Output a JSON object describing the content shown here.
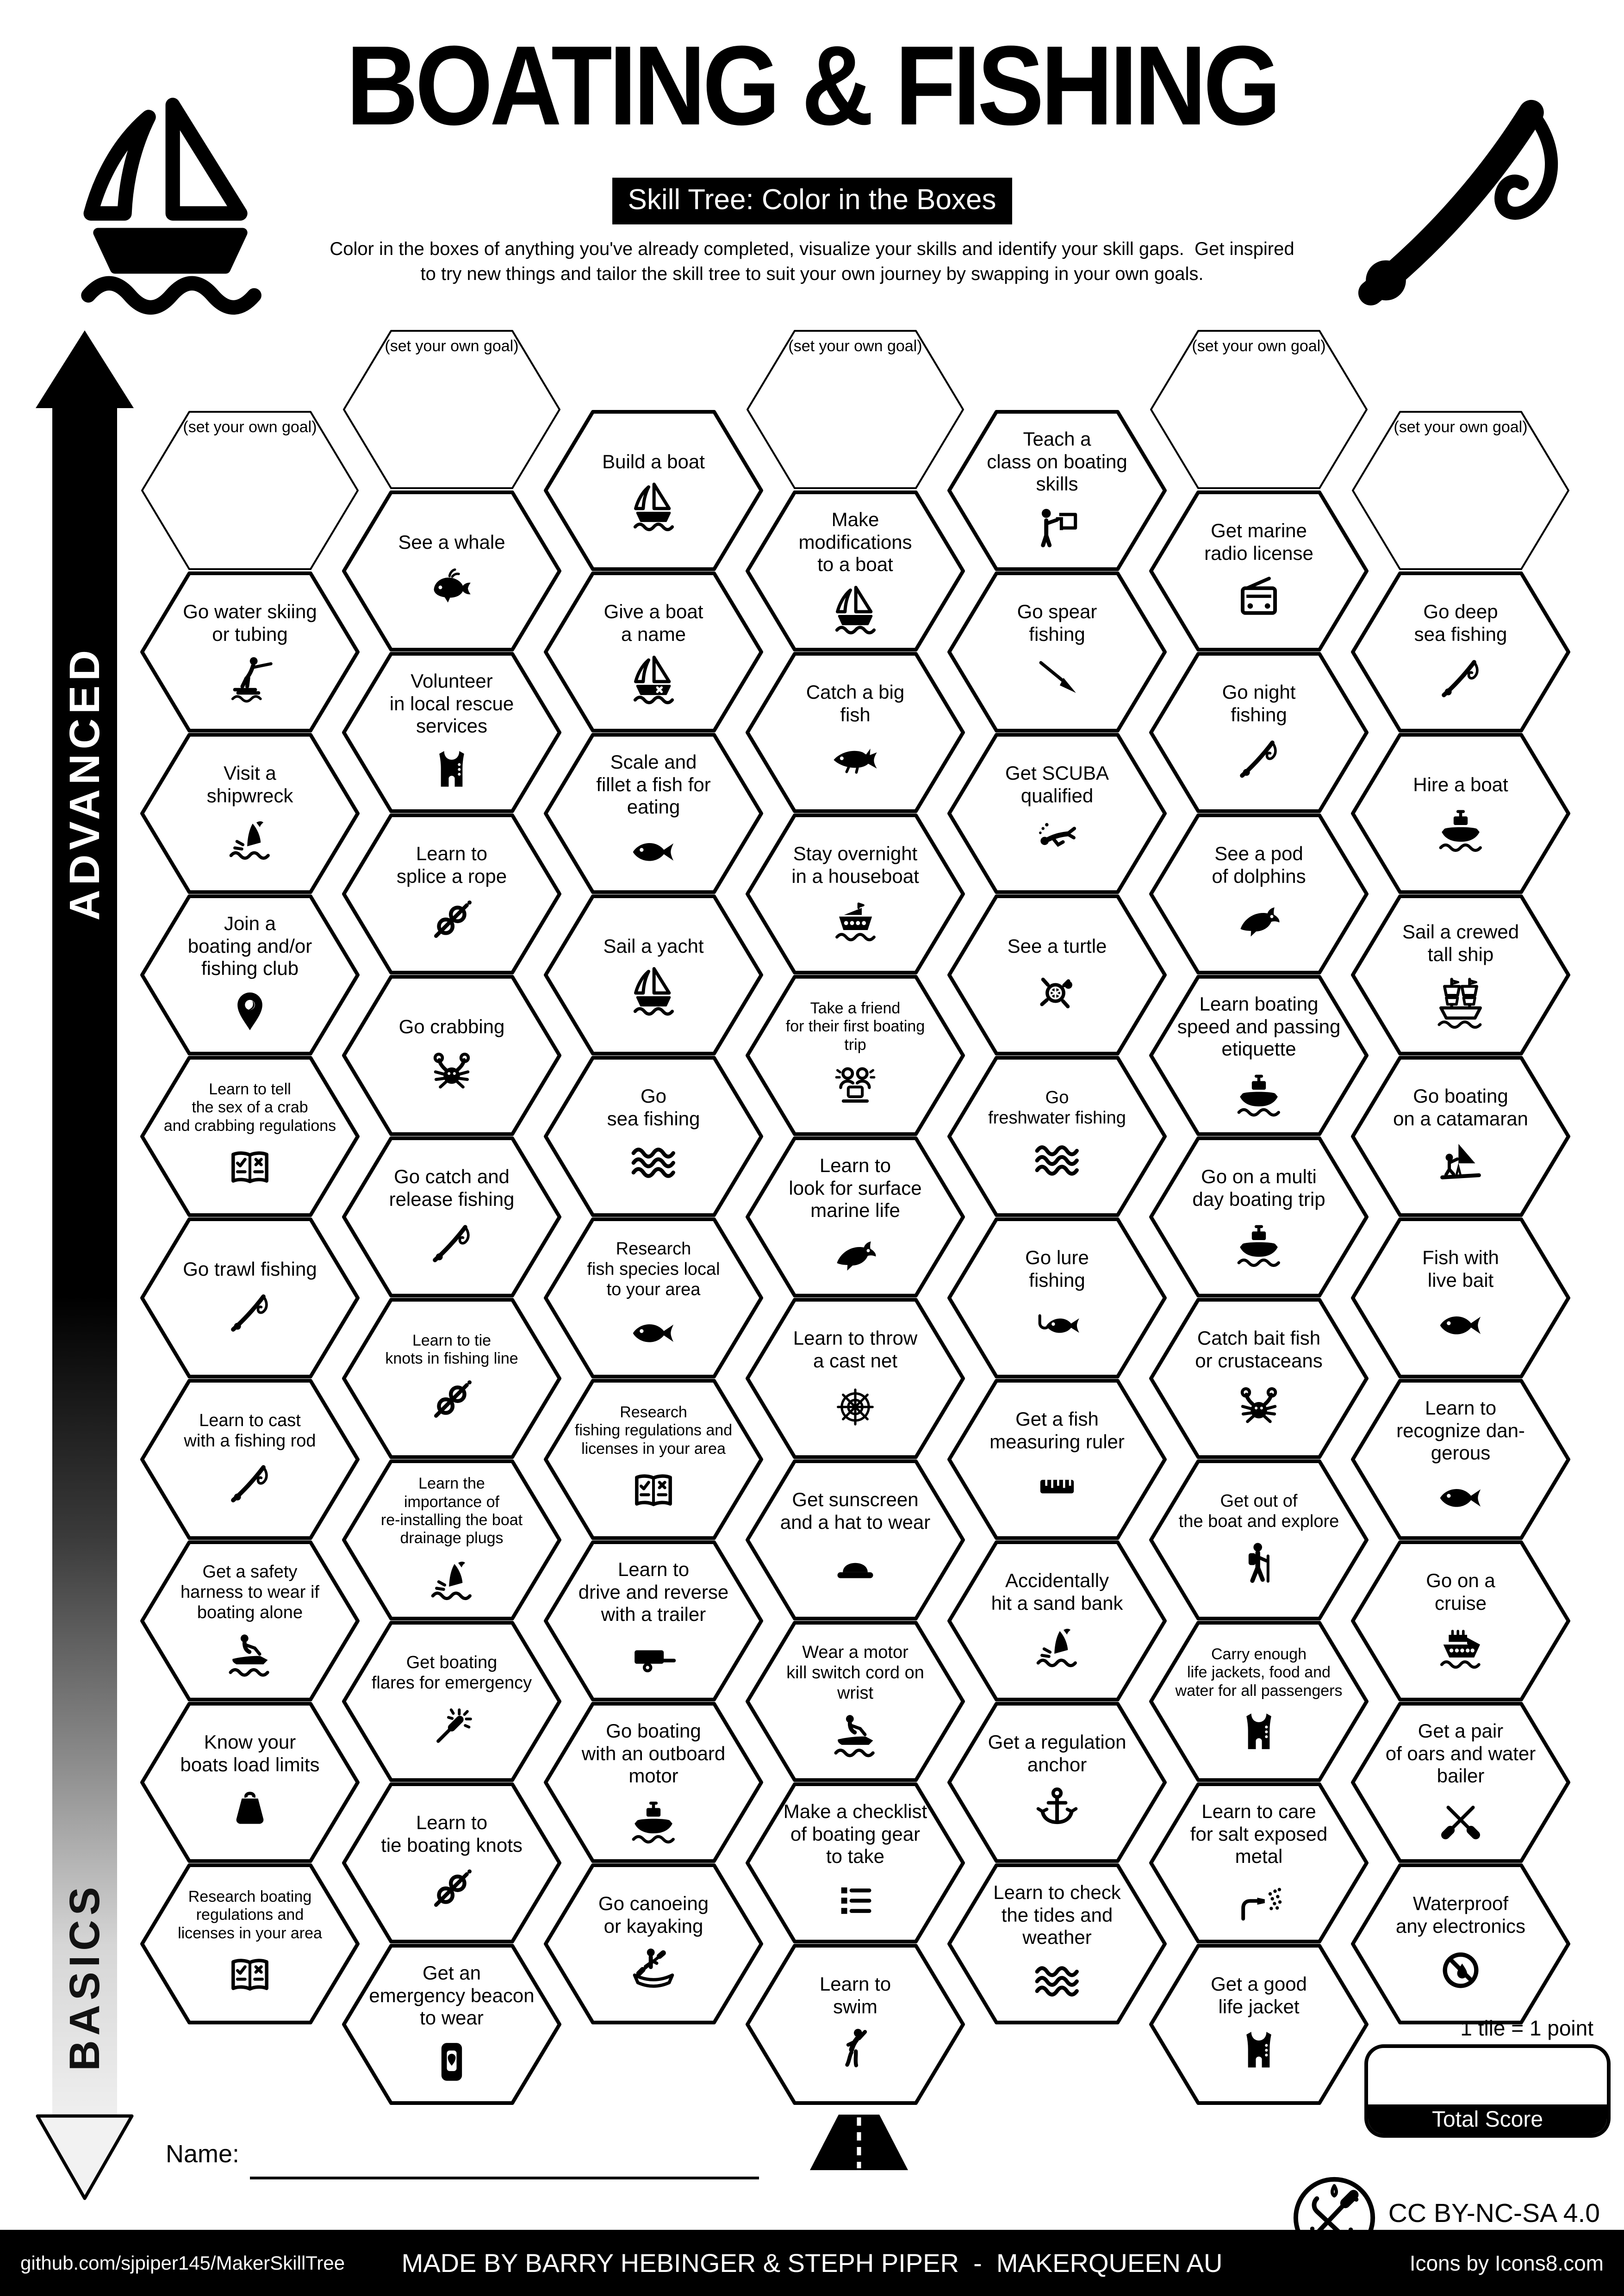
{
  "header": {
    "title": "BOATING & FISHING",
    "subtitle": "Skill Tree: Color in the Boxes",
    "description_line1": "Color in the boxes of anything you've already completed, visualize your skills and identify your skill gaps.  Get inspired",
    "description_line2": "to try new things and tailor the skill tree to suit your own journey by swapping in your own goals.",
    "left_icon": "sailboat-logo",
    "right_icon": "fishing-rod-logo"
  },
  "axis": {
    "top": "ADVANCED",
    "bottom": "BASICS"
  },
  "grid": {
    "tiles": [
      {
        "col": 0,
        "row": 0,
        "goal": true,
        "label": "(set your own goal)"
      },
      {
        "col": 0,
        "row": 1,
        "lines": [
          "Go water skiing",
          "or tubing"
        ],
        "icon": "water-skier"
      },
      {
        "col": 0,
        "row": 2,
        "lines": [
          "Visit a",
          "shipwreck"
        ],
        "icon": "shipwreck"
      },
      {
        "col": 0,
        "row": 3,
        "lines": [
          "Join a",
          "boating and/or",
          "fishing club"
        ],
        "icon": "location-pin"
      },
      {
        "col": 0,
        "row": 4,
        "lines": [
          "Learn to tell",
          "the sex of a crab",
          "and crabbing regulations"
        ],
        "icon": "guide-book"
      },
      {
        "col": 0,
        "row": 5,
        "lines": [
          "Go trawl fishing"
        ],
        "icon": "fishing-rod"
      },
      {
        "col": 0,
        "row": 6,
        "lines": [
          "Learn to cast",
          "with a fishing rod"
        ],
        "icon": "fishing-rod"
      },
      {
        "col": 0,
        "row": 7,
        "lines": [
          "Get a safety",
          "harness to wear if",
          "boating alone"
        ],
        "icon": "jet-ski"
      },
      {
        "col": 0,
        "row": 8,
        "lines": [
          "Know your",
          "boats load limits"
        ],
        "icon": "load-weight"
      },
      {
        "col": 0,
        "row": 9,
        "lines": [
          "Research boating",
          "regulations and",
          "licenses in your area"
        ],
        "icon": "guide-book"
      },
      {
        "col": 1,
        "row": 0,
        "goal": true,
        "label": "(set your own goal)"
      },
      {
        "col": 1,
        "row": 1,
        "lines": [
          "See a whale"
        ],
        "icon": "whale"
      },
      {
        "col": 1,
        "row": 2,
        "lines": [
          "Volunteer",
          "in local rescue",
          "services"
        ],
        "icon": "life-vest"
      },
      {
        "col": 1,
        "row": 3,
        "lines": [
          "Learn to",
          "splice a rope"
        ],
        "icon": "rope-knot"
      },
      {
        "col": 1,
        "row": 4,
        "lines": [
          "Go crabbing"
        ],
        "icon": "crab"
      },
      {
        "col": 1,
        "row": 5,
        "lines": [
          "Go catch and",
          "release fishing"
        ],
        "icon": "fishing-rod"
      },
      {
        "col": 1,
        "row": 6,
        "lines": [
          "Learn to tie",
          "knots in fishing line"
        ],
        "icon": "rope-knot"
      },
      {
        "col": 1,
        "row": 7,
        "lines": [
          "Learn the",
          "importance of",
          "re-installing the boat",
          "drainage plugs"
        ],
        "icon": "sinking-boat"
      },
      {
        "col": 1,
        "row": 8,
        "lines": [
          "Get boating",
          "flares for emergency"
        ],
        "icon": "flare"
      },
      {
        "col": 1,
        "row": 9,
        "lines": [
          "Learn to",
          "tie boating knots"
        ],
        "icon": "rope-knot"
      },
      {
        "col": 1,
        "row": 10,
        "lines": [
          "Get an",
          "emergency beacon",
          "to wear"
        ],
        "icon": "emergency-beacon"
      },
      {
        "col": 2,
        "row": 0,
        "lines": [
          "Build a boat"
        ],
        "icon": "sailboat"
      },
      {
        "col": 2,
        "row": 1,
        "lines": [
          "Give a boat",
          "a name"
        ],
        "icon": "boat-name"
      },
      {
        "col": 2,
        "row": 2,
        "lines": [
          "Scale and",
          "fillet a fish for",
          "eating"
        ],
        "icon": "fish"
      },
      {
        "col": 2,
        "row": 3,
        "lines": [
          "Sail a yacht"
        ],
        "icon": "sailboat"
      },
      {
        "col": 2,
        "row": 4,
        "lines": [
          "Go",
          "sea fishing"
        ],
        "icon": "waves"
      },
      {
        "col": 2,
        "row": 5,
        "lines": [
          "Research",
          "fish species local",
          "to your area"
        ],
        "icon": "fish"
      },
      {
        "col": 2,
        "row": 6,
        "lines": [
          "Research",
          "fishing regulations and",
          "licenses in your area"
        ],
        "icon": "guide-book"
      },
      {
        "col": 2,
        "row": 7,
        "lines": [
          "Learn to",
          "drive and reverse",
          "with a trailer"
        ],
        "icon": "boat-trailer"
      },
      {
        "col": 2,
        "row": 8,
        "lines": [
          "Go boating",
          "with an outboard",
          "motor"
        ],
        "icon": "motorboat"
      },
      {
        "col": 2,
        "row": 9,
        "lines": [
          "Go canoeing",
          "or kayaking"
        ],
        "icon": "canoe"
      },
      {
        "col": 3,
        "row": 0,
        "goal": true,
        "label": "(set your own goal)"
      },
      {
        "col": 3,
        "row": 1,
        "lines": [
          "Make",
          "modifications",
          "to a boat"
        ],
        "icon": "sailboat"
      },
      {
        "col": 3,
        "row": 2,
        "lines": [
          "Catch a big",
          "fish"
        ],
        "icon": "big-fish"
      },
      {
        "col": 3,
        "row": 3,
        "lines": [
          "Stay overnight",
          "in a houseboat"
        ],
        "icon": "houseboat"
      },
      {
        "col": 3,
        "row": 4,
        "lines": [
          "Take a friend",
          "for their first boating",
          "trip"
        ],
        "icon": "friends"
      },
      {
        "col": 3,
        "row": 5,
        "lines": [
          "Learn to",
          "look for surface",
          "marine life"
        ],
        "icon": "dolphin"
      },
      {
        "col": 3,
        "row": 6,
        "lines": [
          "Learn to throw",
          "a cast net"
        ],
        "icon": "cast-net"
      },
      {
        "col": 3,
        "row": 7,
        "lines": [
          "Get sunscreen",
          "and a hat to wear"
        ],
        "icon": "sun-hat"
      },
      {
        "col": 3,
        "row": 8,
        "lines": [
          "Wear a motor",
          "kill switch cord on",
          "wrist"
        ],
        "icon": "jet-ski"
      },
      {
        "col": 3,
        "row": 9,
        "lines": [
          "Make a checklist",
          "of boating gear",
          "to take"
        ],
        "icon": "checklist"
      },
      {
        "col": 3,
        "row": 10,
        "lines": [
          "Learn to",
          "swim"
        ],
        "icon": "swimmer"
      },
      {
        "col": 4,
        "row": 0,
        "lines": [
          "Teach a",
          "class on boating",
          "skills"
        ],
        "icon": "teacher"
      },
      {
        "col": 4,
        "row": 1,
        "lines": [
          "Go spear",
          "fishing"
        ],
        "icon": "spear"
      },
      {
        "col": 4,
        "row": 2,
        "lines": [
          "Get SCUBA",
          "qualified"
        ],
        "icon": "scuba-diver"
      },
      {
        "col": 4,
        "row": 3,
        "lines": [
          "See a turtle"
        ],
        "icon": "turtle"
      },
      {
        "col": 4,
        "row": 4,
        "lines": [
          "Go",
          "freshwater fishing"
        ],
        "icon": "waves"
      },
      {
        "col": 4,
        "row": 5,
        "lines": [
          "Go lure",
          "fishing"
        ],
        "icon": "lure-fish"
      },
      {
        "col": 4,
        "row": 6,
        "lines": [
          "Get a fish",
          "measuring ruler"
        ],
        "icon": "ruler"
      },
      {
        "col": 4,
        "row": 7,
        "lines": [
          "Accidentally",
          "hit a sand bank"
        ],
        "icon": "sand-bank"
      },
      {
        "col": 4,
        "row": 8,
        "lines": [
          "Get a regulation",
          "anchor"
        ],
        "icon": "anchor"
      },
      {
        "col": 4,
        "row": 9,
        "lines": [
          "Learn to check",
          "the tides and",
          "weather"
        ],
        "icon": "waves"
      },
      {
        "col": 5,
        "row": 0,
        "goal": true,
        "label": "(set your own goal)"
      },
      {
        "col": 5,
        "row": 1,
        "lines": [
          "Get marine",
          "radio license"
        ],
        "icon": "marine-radio"
      },
      {
        "col": 5,
        "row": 2,
        "lines": [
          "Go night",
          "fishing"
        ],
        "icon": "fishing-rod"
      },
      {
        "col": 5,
        "row": 3,
        "lines": [
          "See a pod",
          "of dolphins"
        ],
        "icon": "dolphin"
      },
      {
        "col": 5,
        "row": 4,
        "lines": [
          "Learn boating",
          "speed and passing",
          "etiquette"
        ],
        "icon": "motorboat"
      },
      {
        "col": 5,
        "row": 5,
        "lines": [
          "Go on a multi",
          "day boating trip"
        ],
        "icon": "motorboat"
      },
      {
        "col": 5,
        "row": 6,
        "lines": [
          "Catch bait fish",
          "or crustaceans"
        ],
        "icon": "crab"
      },
      {
        "col": 5,
        "row": 7,
        "lines": [
          "Get out of",
          "the boat and explore"
        ],
        "icon": "hiker"
      },
      {
        "col": 5,
        "row": 8,
        "lines": [
          "Carry enough",
          "life jackets, food and",
          "water for all passengers"
        ],
        "icon": "life-vest"
      },
      {
        "col": 5,
        "row": 9,
        "lines": [
          "Learn to care",
          "for salt exposed",
          "metal"
        ],
        "icon": "spray-hose"
      },
      {
        "col": 5,
        "row": 10,
        "lines": [
          "Get a good",
          "life jacket"
        ],
        "icon": "life-vest"
      },
      {
        "col": 6,
        "row": 0,
        "goal": true,
        "label": "(set your own goal)"
      },
      {
        "col": 6,
        "row": 1,
        "lines": [
          "Go deep",
          "sea fishing"
        ],
        "icon": "fishing-rod"
      },
      {
        "col": 6,
        "row": 2,
        "lines": [
          "Hire a boat"
        ],
        "icon": "motorboat"
      },
      {
        "col": 6,
        "row": 3,
        "lines": [
          "Sail a crewed",
          "tall ship"
        ],
        "icon": "tall-ship"
      },
      {
        "col": 6,
        "row": 4,
        "lines": [
          "Go boating",
          "on a catamaran"
        ],
        "icon": "catamaran"
      },
      {
        "col": 6,
        "row": 5,
        "lines": [
          "Fish with",
          "live bait"
        ],
        "icon": "fish"
      },
      {
        "col": 6,
        "row": 6,
        "lines": [
          "Learn to",
          "recognize dan-",
          "gerous"
        ],
        "icon": "fish"
      },
      {
        "col": 6,
        "row": 7,
        "lines": [
          "Go on a",
          "cruise"
        ],
        "icon": "cruise-ship"
      },
      {
        "col": 6,
        "row": 8,
        "lines": [
          "Get a pair",
          "of oars and water",
          "bailer"
        ],
        "icon": "oars"
      },
      {
        "col": 6,
        "row": 9,
        "lines": [
          "Waterproof",
          "any electronics"
        ],
        "icon": "no-water"
      }
    ]
  },
  "start_marker_icon": "road",
  "scorebox": {
    "note": "1 tile = 1 point",
    "label": "Total Score"
  },
  "name_field": {
    "label": "Name:"
  },
  "license": {
    "text": "CC BY-NC-SA 4.0",
    "logo": "makerqueen-logo"
  },
  "footer": {
    "left": "github.com/sjpiper145/MakerSkillTree",
    "center": "MADE BY BARRY HEBINGER & STEPH PIPER  -  MAKERQUEEN AU",
    "right": "Icons by Icons8.com"
  }
}
